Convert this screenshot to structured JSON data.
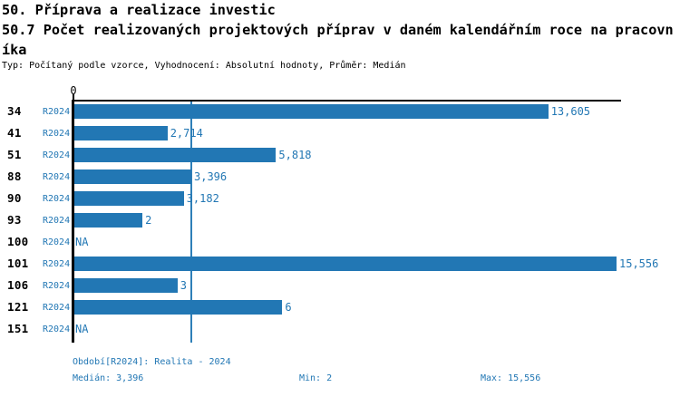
{
  "header": {
    "title": "50. Příprava a realizace investic",
    "subtitle": "50.7 Počet realizovaných projektových příprav v daném kalendářním roce na pracovníka",
    "meta": "Typ: Počítaný podle vzorce, Vyhodnocení: Absolutní hodnoty, Průměr: Medián"
  },
  "colors": {
    "bar": "#2277b4",
    "accent_text": "#2277b4",
    "median_line": "#2e7fb8",
    "axis": "#000000",
    "background": "#ffffff"
  },
  "chart_data": {
    "type": "bar",
    "orientation": "horizontal",
    "title": "50.7 Počet realizovaných projektových příprav v daném kalendářním roce na pracovníka",
    "x_axis": {
      "zero_label": "0",
      "xmin": 0,
      "xmax": 15.556,
      "visible_ticks": [
        "0"
      ]
    },
    "median_value": 3.396,
    "legend": "none",
    "grid": "off",
    "rows": [
      {
        "id": "34",
        "series": "R2024",
        "value": 13.605,
        "display": "13,605"
      },
      {
        "id": "41",
        "series": "R2024",
        "value": 2.714,
        "display": "2,714"
      },
      {
        "id": "51",
        "series": "R2024",
        "value": 5.818,
        "display": "5,818"
      },
      {
        "id": "88",
        "series": "R2024",
        "value": 3.396,
        "display": "3,396"
      },
      {
        "id": "90",
        "series": "R2024",
        "value": 3.182,
        "display": "3,182"
      },
      {
        "id": "93",
        "series": "R2024",
        "value": 2,
        "display": "2"
      },
      {
        "id": "100",
        "series": "R2024",
        "value": null,
        "display": "NA"
      },
      {
        "id": "101",
        "series": "R2024",
        "value": 15.556,
        "display": "15,556"
      },
      {
        "id": "106",
        "series": "R2024",
        "value": 3,
        "display": "3"
      },
      {
        "id": "121",
        "series": "R2024",
        "value": 6,
        "display": "6"
      },
      {
        "id": "151",
        "series": "R2024",
        "value": null,
        "display": "NA"
      }
    ]
  },
  "footer": {
    "period": "Období[R2024]: Realita - 2024",
    "median": "Medián: 3,396",
    "min": "Min: 2",
    "max": "Max: 15,556"
  }
}
